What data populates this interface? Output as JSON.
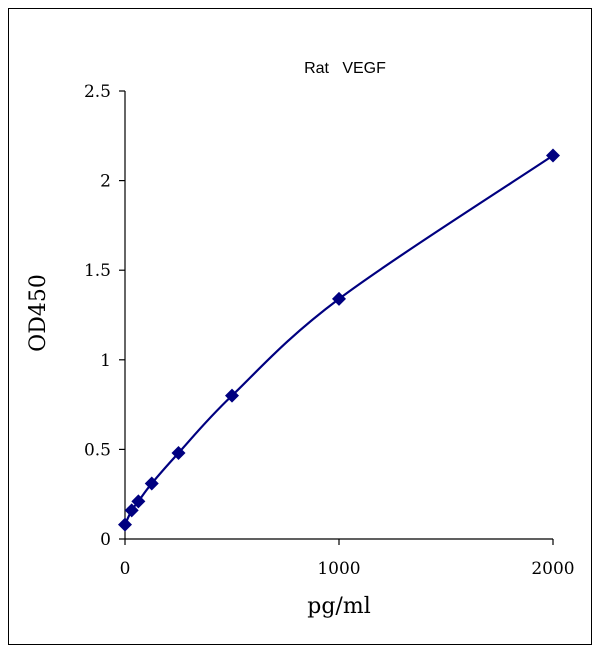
{
  "chart_data": {
    "type": "scatter",
    "title": "Rat   VEGF",
    "xlabel": "pg/ml",
    "ylabel": "OD450",
    "xlim": [
      0,
      2000
    ],
    "ylim": [
      0,
      2.5
    ],
    "x_ticks": [
      {
        "value": 0,
        "label": "0"
      },
      {
        "value": 1000,
        "label": "1000"
      },
      {
        "value": 2000,
        "label": "2000"
      }
    ],
    "y_ticks": [
      {
        "value": 0,
        "label": "0"
      },
      {
        "value": 0.5,
        "label": "0.5"
      },
      {
        "value": 1,
        "label": "1"
      },
      {
        "value": 1.5,
        "label": "1.5"
      },
      {
        "value": 2,
        "label": "2"
      },
      {
        "value": 2.5,
        "label": "2.5"
      }
    ],
    "grid": false,
    "legend": "none",
    "series": [
      {
        "marker": "diamond",
        "color": "#000080",
        "points": [
          {
            "x": 0,
            "y": 0.08
          },
          {
            "x": 31.25,
            "y": 0.16
          },
          {
            "x": 62.5,
            "y": 0.21
          },
          {
            "x": 125,
            "y": 0.31
          },
          {
            "x": 250,
            "y": 0.48
          },
          {
            "x": 500,
            "y": 0.8
          },
          {
            "x": 1000,
            "y": 1.34
          },
          {
            "x": 2000,
            "y": 2.14
          }
        ]
      }
    ],
    "curve_color": "#000080"
  }
}
